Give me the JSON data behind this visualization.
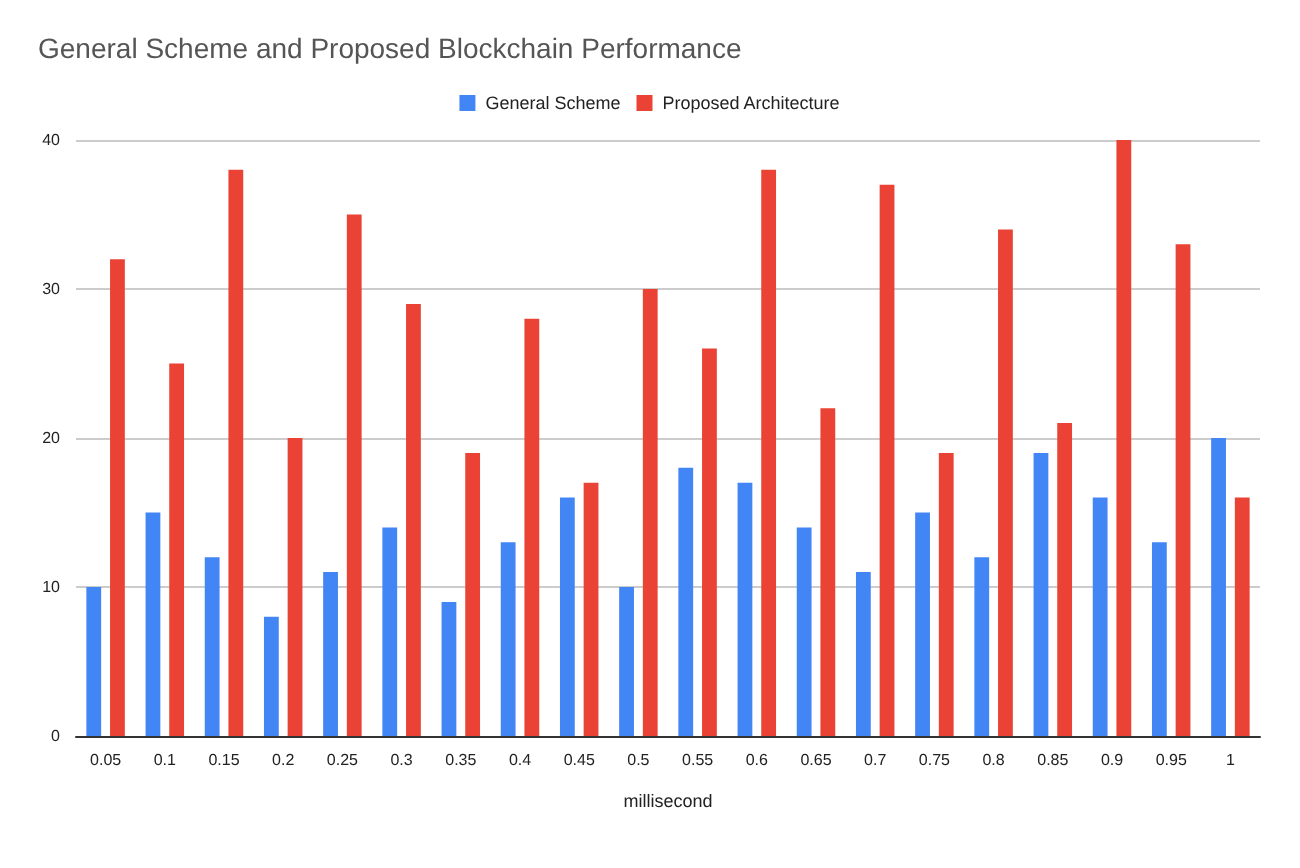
{
  "chart_data": {
    "type": "bar",
    "title": "General Scheme and Proposed Blockchain Performance",
    "xlabel": "millisecond",
    "categories": [
      "0.05",
      "0.1",
      "0.15",
      "0.2",
      "0.25",
      "0.3",
      "0.35",
      "0.4",
      "0.45",
      "0.5",
      "0.55",
      "0.6",
      "0.65",
      "0.7",
      "0.75",
      "0.8",
      "0.85",
      "0.9",
      "0.95",
      "1"
    ],
    "series": [
      {
        "name": "General Scheme",
        "color": "#4285f4",
        "values": [
          10,
          15,
          12,
          8,
          11,
          14,
          9,
          13,
          16,
          10,
          18,
          17,
          14,
          11,
          15,
          12,
          19,
          16,
          13,
          20
        ]
      },
      {
        "name": "Proposed Architecture",
        "color": "#ea4335",
        "values": [
          32,
          25,
          38,
          20,
          35,
          29,
          19,
          28,
          17,
          30,
          26,
          38,
          22,
          37,
          19,
          34,
          21,
          40,
          33,
          16
        ]
      }
    ],
    "ylim": [
      0,
      40
    ],
    "yticks": [
      0,
      10,
      20,
      30,
      40
    ],
    "grid": "y",
    "legend": "top"
  }
}
